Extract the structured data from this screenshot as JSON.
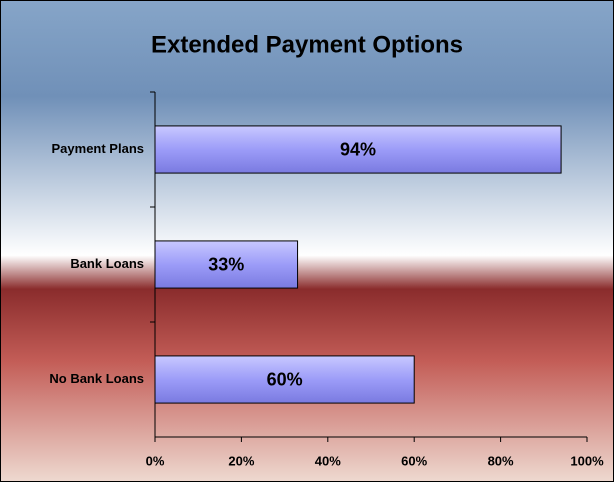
{
  "chart_data": {
    "type": "bar",
    "orientation": "horizontal",
    "title": "Extended Payment Options",
    "categories": [
      "Payment Plans",
      "Bank Loans",
      "No Bank Loans"
    ],
    "values": [
      94,
      33,
      60
    ],
    "value_labels": [
      "94%",
      "33%",
      "60%"
    ],
    "color": "#9c9cf8",
    "xlim": [
      0,
      100
    ],
    "xticks": [
      {
        "value": 0,
        "label": "0%"
      },
      {
        "value": 20,
        "label": "20%"
      },
      {
        "value": 40,
        "label": "40%"
      },
      {
        "value": 60,
        "label": "60%"
      },
      {
        "value": 80,
        "label": "80%"
      },
      {
        "value": 100,
        "label": "100%"
      }
    ]
  }
}
